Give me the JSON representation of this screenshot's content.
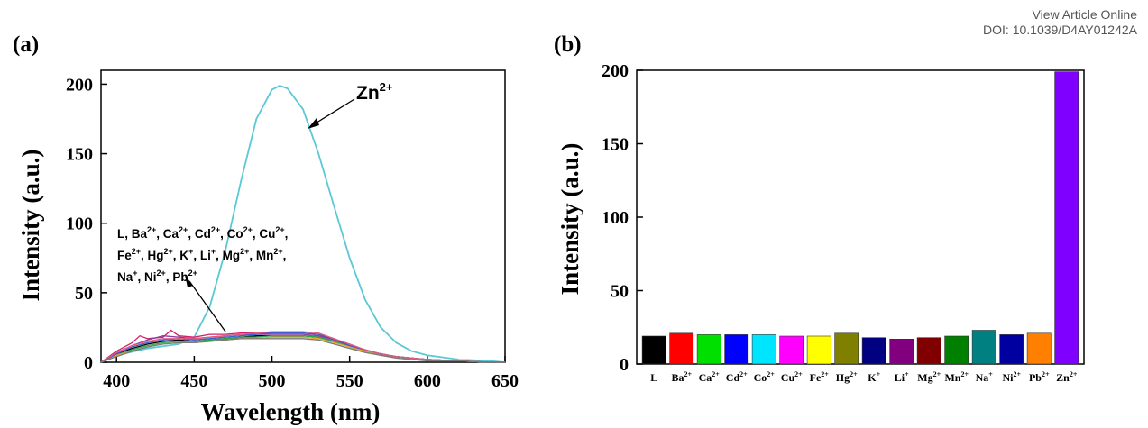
{
  "header": {
    "view_article_online": "View Article Online",
    "doi": "DOI: 10.1039/D4AY01242A"
  },
  "chart_data": [
    {
      "type": "line",
      "panel_label": "(a)",
      "xlabel": "Wavelength (nm)",
      "ylabel": "Intensity (a.u.)",
      "xlim": [
        390,
        650
      ],
      "ylim": [
        0,
        210
      ],
      "x_ticks": [
        400,
        450,
        500,
        550,
        600,
        650
      ],
      "y_ticks": [
        0,
        50,
        100,
        150,
        200
      ],
      "grid": false,
      "annotations": [
        {
          "base": "Zn",
          "sup": "2+",
          "points_to": "Zn2+ curve at ~530 nm"
        },
        {
          "lines": [
            [
              {
                "t": "L, Ba"
              },
              {
                "sup": "2+"
              },
              {
                "t": ", Ca"
              },
              {
                "sup": "2+"
              },
              {
                "t": ", Cd"
              },
              {
                "sup": "2+"
              },
              {
                "t": ", Co"
              },
              {
                "sup": "2+"
              },
              {
                "t": ", Cu"
              },
              {
                "sup": "2+"
              },
              {
                "t": ","
              }
            ],
            [
              {
                "t": "Fe"
              },
              {
                "sup": "2+"
              },
              {
                "t": ", Hg"
              },
              {
                "sup": "2+"
              },
              {
                "t": ", K"
              },
              {
                "sup": "+"
              },
              {
                "t": ", Li"
              },
              {
                "sup": "+"
              },
              {
                "t": ", Mg"
              },
              {
                "sup": "2+"
              },
              {
                "t": ", Mn"
              },
              {
                "sup": "2+"
              },
              {
                "t": ","
              }
            ],
            [
              {
                "t": "Na"
              },
              {
                "sup": "+"
              },
              {
                "t": ", Ni"
              },
              {
                "sup": "2+"
              },
              {
                "t": ", Pb"
              },
              {
                "sup": "2+"
              }
            ]
          ],
          "points_to": "group of low-intensity curves"
        }
      ],
      "series": [
        {
          "name": "Zn2+",
          "color": "#5bc8d6",
          "x": [
            390,
            400,
            420,
            440,
            450,
            460,
            470,
            480,
            490,
            500,
            505,
            510,
            520,
            530,
            540,
            550,
            560,
            570,
            580,
            590,
            600,
            620,
            640,
            650
          ],
          "y": [
            0,
            5,
            10,
            13,
            18,
            40,
            80,
            130,
            175,
            196,
            199,
            197,
            182,
            150,
            112,
            75,
            45,
            25,
            14,
            8,
            5,
            2,
            1,
            0
          ]
        },
        {
          "name": "L",
          "color": "#000000",
          "x": [
            390,
            400,
            410,
            420,
            430,
            440,
            450,
            460,
            470,
            480,
            490,
            500,
            510,
            520,
            530,
            540,
            550,
            560,
            570,
            580,
            590,
            600,
            620,
            640,
            650
          ],
          "y": [
            0,
            6,
            10,
            13,
            15,
            16,
            15,
            16,
            17,
            18,
            19,
            19,
            19,
            19,
            18,
            15,
            11,
            8,
            6,
            4,
            3,
            2,
            1,
            0,
            0
          ]
        },
        {
          "name": "Ba2+",
          "color": "#d21f6e",
          "x": [
            390,
            400,
            410,
            415,
            420,
            430,
            435,
            440,
            450,
            460,
            470,
            480,
            490,
            500,
            510,
            520,
            530,
            540,
            550,
            560,
            570,
            580,
            590,
            600,
            620,
            640,
            650
          ],
          "y": [
            0,
            8,
            14,
            19,
            17,
            18,
            23,
            19,
            18,
            20,
            20,
            21,
            21,
            21,
            21,
            21,
            20,
            16,
            12,
            9,
            6,
            4,
            3,
            2,
            1,
            0,
            0
          ]
        },
        {
          "name": "Ca2+",
          "color": "#8a3fa1",
          "x": [
            390,
            400,
            410,
            420,
            430,
            440,
            450,
            460,
            470,
            480,
            490,
            500,
            510,
            520,
            530,
            540,
            550,
            560,
            570,
            580,
            590,
            600,
            620,
            640,
            650
          ],
          "y": [
            0,
            7,
            12,
            16,
            19,
            18,
            17,
            18,
            19,
            20,
            20,
            20,
            20,
            20,
            19,
            16,
            12,
            8,
            6,
            4,
            3,
            2,
            1,
            0,
            0
          ]
        },
        {
          "name": "Cd2+",
          "color": "#2aa84a",
          "x": [
            390,
            400,
            410,
            420,
            430,
            440,
            450,
            460,
            470,
            480,
            490,
            500,
            510,
            520,
            530,
            540,
            550,
            560,
            570,
            580,
            590,
            600,
            620,
            640,
            650
          ],
          "y": [
            0,
            5,
            9,
            12,
            14,
            15,
            15,
            16,
            17,
            18,
            18,
            19,
            19,
            19,
            18,
            15,
            11,
            8,
            5,
            4,
            3,
            2,
            1,
            0,
            0
          ]
        },
        {
          "name": "Cu2+",
          "color": "#e6a530",
          "x": [
            390,
            400,
            410,
            420,
            430,
            440,
            450,
            460,
            470,
            480,
            490,
            500,
            510,
            520,
            530,
            540,
            550,
            560,
            570,
            580,
            590,
            600,
            620,
            640,
            650
          ],
          "y": [
            0,
            5,
            8,
            11,
            13,
            14,
            14,
            15,
            16,
            17,
            17,
            18,
            18,
            18,
            17,
            14,
            11,
            8,
            5,
            3,
            2,
            2,
            1,
            0,
            0
          ]
        },
        {
          "name": "Hg2+",
          "color": "#3b5fd0",
          "x": [
            390,
            400,
            410,
            420,
            430,
            440,
            450,
            460,
            470,
            480,
            490,
            500,
            510,
            520,
            530,
            540,
            550,
            560,
            570,
            580,
            590,
            600,
            620,
            640,
            650
          ],
          "y": [
            0,
            6,
            11,
            14,
            16,
            17,
            16,
            17,
            18,
            19,
            20,
            21,
            21,
            21,
            20,
            17,
            12,
            9,
            6,
            4,
            3,
            2,
            1,
            0,
            0
          ]
        },
        {
          "name": "Na+",
          "color": "#e05b7d",
          "x": [
            390,
            400,
            410,
            420,
            430,
            440,
            450,
            460,
            470,
            480,
            490,
            500,
            510,
            520,
            530,
            540,
            550,
            560,
            570,
            580,
            590,
            600,
            620,
            640,
            650
          ],
          "y": [
            0,
            7,
            12,
            15,
            17,
            17,
            17,
            18,
            19,
            20,
            21,
            22,
            22,
            22,
            21,
            17,
            13,
            9,
            6,
            4,
            3,
            2,
            1,
            0,
            0
          ]
        },
        {
          "name": "Mn2+",
          "color": "#7a7a7a",
          "x": [
            390,
            400,
            410,
            420,
            430,
            440,
            450,
            460,
            470,
            480,
            490,
            500,
            510,
            520,
            530,
            540,
            550,
            560,
            570,
            580,
            590,
            600,
            620,
            640,
            650
          ],
          "y": [
            0,
            4,
            8,
            11,
            13,
            14,
            14,
            15,
            16,
            17,
            17,
            17,
            17,
            17,
            16,
            13,
            10,
            7,
            5,
            3,
            2,
            1,
            1,
            0,
            0
          ]
        }
      ]
    },
    {
      "type": "bar",
      "panel_label": "(b)",
      "xlabel": "",
      "ylabel": "Intensity (a.u.)",
      "ylim": [
        0,
        200
      ],
      "y_ticks": [
        0,
        50,
        100,
        150,
        200
      ],
      "grid": false,
      "categories": [
        {
          "base": "L",
          "sup": ""
        },
        {
          "base": "Ba",
          "sup": "2+"
        },
        {
          "base": "Ca",
          "sup": "2+"
        },
        {
          "base": "Cd",
          "sup": "2+"
        },
        {
          "base": "Co",
          "sup": "2+"
        },
        {
          "base": "Cu",
          "sup": "2+"
        },
        {
          "base": "Fe",
          "sup": "2+"
        },
        {
          "base": "Hg",
          "sup": "2+"
        },
        {
          "base": "K",
          "sup": "+"
        },
        {
          "base": "Li",
          "sup": "+"
        },
        {
          "base": "Mg",
          "sup": "2+"
        },
        {
          "base": "Mn",
          "sup": "2+"
        },
        {
          "base": "Na",
          "sup": "+"
        },
        {
          "base": "Ni",
          "sup": "2+"
        },
        {
          "base": "Pb",
          "sup": "2+"
        },
        {
          "base": "Zn",
          "sup": "2+"
        }
      ],
      "values": [
        19,
        21,
        20,
        20,
        20,
        19,
        19,
        21,
        18,
        17,
        18,
        19,
        23,
        20,
        21,
        199
      ],
      "colors": [
        "#000000",
        "#ff0000",
        "#00e000",
        "#0000ff",
        "#00e5ff",
        "#ff00ff",
        "#ffff00",
        "#808000",
        "#000080",
        "#800080",
        "#800000",
        "#008000",
        "#008080",
        "#0000a0",
        "#ff8000",
        "#8000ff"
      ]
    }
  ]
}
